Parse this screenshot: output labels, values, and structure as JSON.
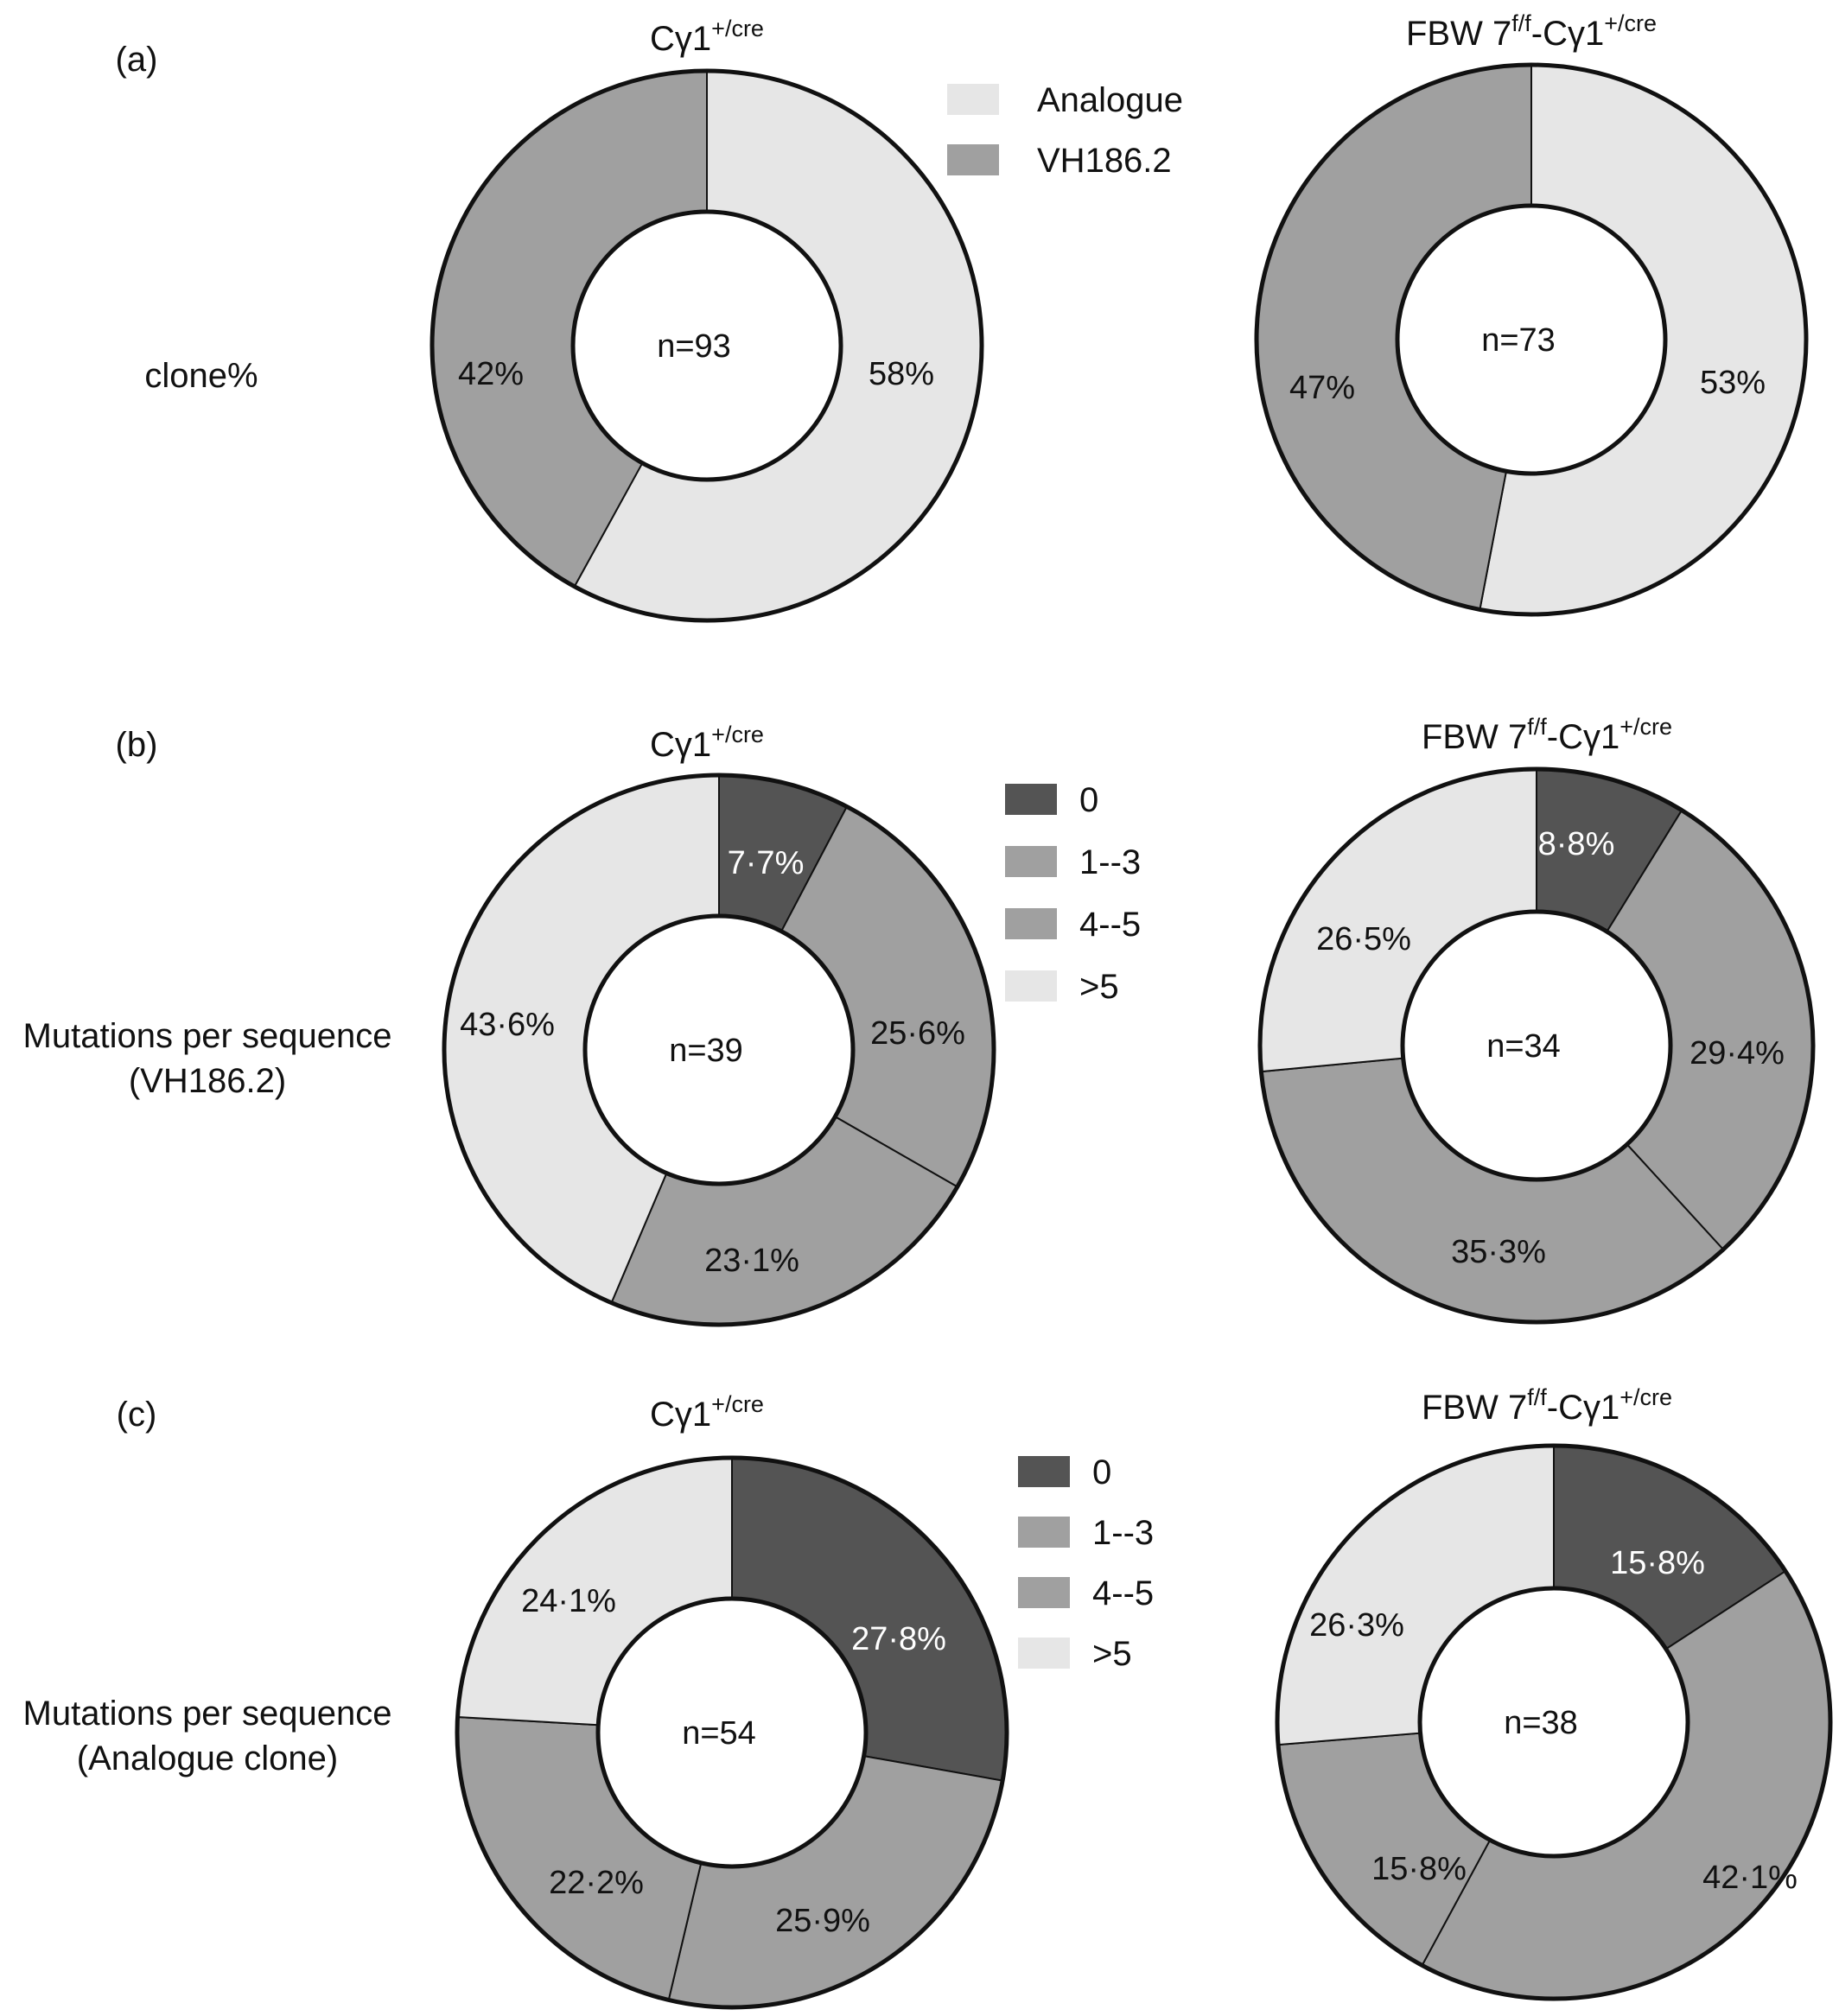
{
  "rows": [
    {
      "panel": "(a)",
      "label_lines": [
        "clone%"
      ],
      "legend": [
        {
          "label": "Analogue",
          "color": "#e6e6e6"
        },
        {
          "label": "VH186.2",
          "color": "#a0a0a0"
        }
      ]
    },
    {
      "panel": "(b)",
      "label_lines": [
        "Mutations per sequence",
        "(VH186.2)"
      ],
      "legend": [
        {
          "label": "0",
          "color": "#545454"
        },
        {
          "label": "1--3",
          "color": "#a0a0a0"
        },
        {
          "label": "4--5",
          "color": "#a0a0a0"
        },
        {
          "label": ">5",
          "color": "#e6e6e6"
        }
      ]
    },
    {
      "panel": "(c)",
      "label_lines": [
        "Mutations per sequence",
        "(Analogue clone)"
      ],
      "legend": [
        {
          "label": "0",
          "color": "#545454"
        },
        {
          "label": "1--3",
          "color": "#a0a0a0"
        },
        {
          "label": "4--5",
          "color": "#a0a0a0"
        },
        {
          "label": ">5",
          "color": "#e6e6e6"
        }
      ]
    }
  ],
  "columns": [
    {
      "title_main": "Cγ1",
      "title_sup": "+/cre",
      "title_prefix": "",
      "title_prefix_sup": ""
    },
    {
      "title_main": "-Cγ1",
      "title_sup": "+/cre",
      "title_prefix": "FBW 7",
      "title_prefix_sup": "f/f"
    }
  ],
  "chart_data": [
    {
      "type": "pie",
      "variant": "donut",
      "row": 0,
      "col": 0,
      "center_label": "n=93",
      "slices": [
        {
          "category": "Analogue",
          "label": "58%",
          "value": 58,
          "color": "#e6e6e6"
        },
        {
          "category": "VH186.2",
          "label": "42%",
          "value": 42,
          "color": "#a0a0a0"
        }
      ]
    },
    {
      "type": "pie",
      "variant": "donut",
      "row": 0,
      "col": 1,
      "center_label": "n=73",
      "slices": [
        {
          "category": "Analogue",
          "label": "53%",
          "value": 53,
          "color": "#e6e6e6"
        },
        {
          "category": "VH186.2",
          "label": "47%",
          "value": 47,
          "color": "#a0a0a0"
        }
      ]
    },
    {
      "type": "pie",
      "variant": "donut",
      "row": 1,
      "col": 0,
      "center_label": "n=39",
      "slices": [
        {
          "category": "0",
          "label": "7·7%",
          "value": 7.7,
          "color": "#545454"
        },
        {
          "category": "1--3",
          "label": "25·6%",
          "value": 25.6,
          "color": "#a0a0a0"
        },
        {
          "category": "4--5",
          "label": "23·1%",
          "value": 23.1,
          "color": "#a0a0a0"
        },
        {
          "category": ">5",
          "label": "43·6%",
          "value": 43.6,
          "color": "#e6e6e6"
        }
      ]
    },
    {
      "type": "pie",
      "variant": "donut",
      "row": 1,
      "col": 1,
      "center_label": "n=34",
      "slices": [
        {
          "category": "0",
          "label": "8·8%",
          "value": 8.8,
          "color": "#545454"
        },
        {
          "category": "1--3",
          "label": "29·4%",
          "value": 29.4,
          "color": "#a0a0a0"
        },
        {
          "category": "4--5",
          "label": "35·3%",
          "value": 35.3,
          "color": "#a0a0a0"
        },
        {
          "category": ">5",
          "label": "26·5%",
          "value": 26.5,
          "color": "#e6e6e6"
        }
      ]
    },
    {
      "type": "pie",
      "variant": "donut",
      "row": 2,
      "col": 0,
      "center_label": "n=54",
      "slices": [
        {
          "category": "0",
          "label": "27·8%",
          "value": 27.8,
          "color": "#545454"
        },
        {
          "category": "1--3",
          "label": "25·9%",
          "value": 25.9,
          "color": "#a0a0a0"
        },
        {
          "category": "4--5",
          "label": "22·2%",
          "value": 22.2,
          "color": "#a0a0a0"
        },
        {
          "category": ">5",
          "label": "24·1%",
          "value": 24.1,
          "color": "#e6e6e6"
        }
      ]
    },
    {
      "type": "pie",
      "variant": "donut",
      "row": 2,
      "col": 1,
      "center_label": "n=38",
      "slices": [
        {
          "category": "0",
          "label": "15·8%",
          "value": 15.8,
          "color": "#545454"
        },
        {
          "category": "1--3",
          "label": "42·1%",
          "value": 42.1,
          "color": "#a0a0a0"
        },
        {
          "category": "4--5",
          "label": "15·8%",
          "value": 15.8,
          "color": "#a0a0a0"
        },
        {
          "category": ">5",
          "label": "26·3%",
          "value": 26.3,
          "color": "#e6e6e6"
        }
      ]
    }
  ]
}
